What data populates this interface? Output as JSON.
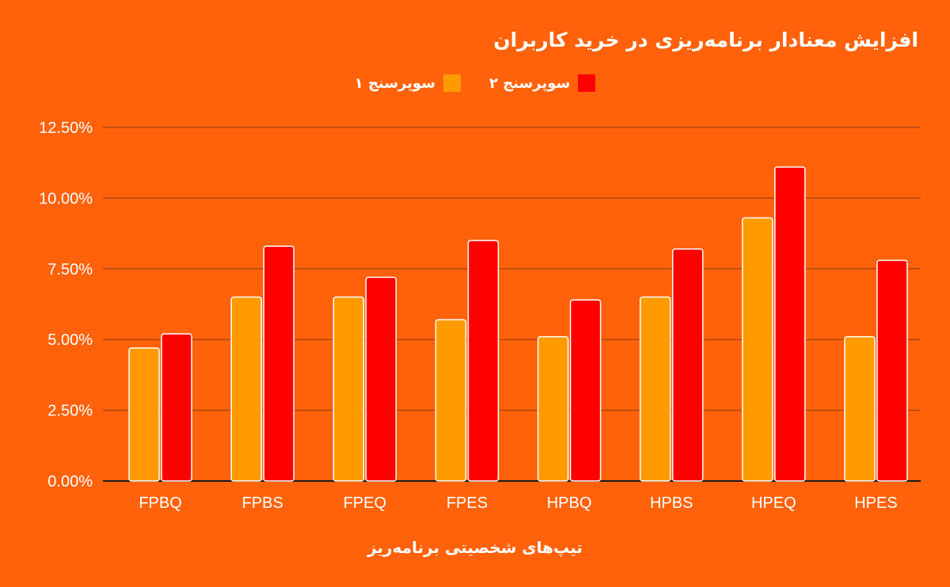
{
  "chart_data": {
    "type": "bar",
    "title": "افزایش معنادار برنامه‌ریزی در خرید کاربران",
    "xlabel": "تیپ‌های شخصیتی برنامه‌ریز",
    "ylabel": "",
    "categories": [
      "FPBQ",
      "FPBS",
      "FPEQ",
      "FPES",
      "HPBQ",
      "HPBS",
      "HPEQ",
      "HPES"
    ],
    "series": [
      {
        "name": "سوپرسنج ۱",
        "color": "#FF9B00",
        "values": [
          4.7,
          6.5,
          6.5,
          5.7,
          5.1,
          6.5,
          9.3,
          5.1
        ]
      },
      {
        "name": "سوپرسنج ۲",
        "color": "#FF0000",
        "values": [
          5.2,
          8.3,
          7.2,
          8.5,
          6.4,
          8.2,
          11.1,
          7.8
        ]
      }
    ],
    "ylim": [
      0,
      12.5
    ],
    "yticks": [
      "0.00%",
      "2.50%",
      "5.00%",
      "7.50%",
      "10.00%",
      "12.50%"
    ],
    "ytick_values": [
      0,
      2.5,
      5,
      7.5,
      10,
      12.5
    ],
    "grid": true,
    "legend_position": "top-center"
  }
}
